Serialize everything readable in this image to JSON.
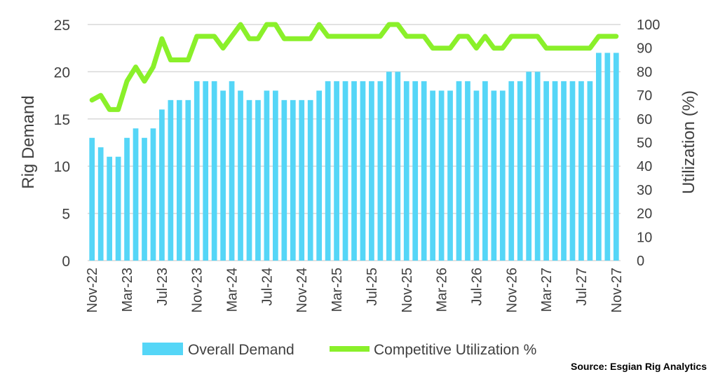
{
  "chart_data": {
    "type": "bar+line",
    "xlabel": "",
    "ylabel": "Rig Demand",
    "y2label": "Utilization (%)",
    "ylim": [
      0,
      25
    ],
    "y2lim": [
      0,
      100
    ],
    "yticks": [
      0,
      5,
      10,
      15,
      20,
      25
    ],
    "y2ticks": [
      0,
      10,
      20,
      30,
      40,
      50,
      60,
      70,
      80,
      90,
      100
    ],
    "grid": true,
    "legend_position": "bottom",
    "x_start": "Nov-22",
    "x_end": "Nov-27",
    "tick_labels": [
      "Nov-22",
      "Mar-23",
      "Jul-23",
      "Nov-23",
      "Mar-24",
      "Jul-24",
      "Nov-24",
      "Mar-25",
      "Jul-25",
      "Nov-25",
      "Mar-26",
      "Jul-26",
      "Nov-26",
      "Mar-27",
      "Jul-27",
      "Nov-27"
    ],
    "series": [
      {
        "name": "Overall Demand",
        "type": "bar",
        "axis": "left",
        "color": "#55d6f7",
        "values": [
          13,
          12,
          11,
          11,
          13,
          14,
          13,
          14,
          16,
          17,
          17,
          17,
          19,
          19,
          19,
          18,
          19,
          18,
          17,
          17,
          18,
          18,
          17,
          17,
          17,
          17,
          18,
          19,
          19,
          19,
          19,
          19,
          19,
          19,
          20,
          20,
          19,
          19,
          19,
          18,
          18,
          18,
          19,
          19,
          18,
          19,
          18,
          18,
          19,
          19,
          20,
          20,
          19,
          19,
          19,
          19,
          19,
          19,
          22,
          22,
          22
        ]
      },
      {
        "name": "Competitive Utilization %",
        "type": "line",
        "axis": "right",
        "color": "#8af02a",
        "values": [
          68,
          70,
          64,
          64,
          76,
          82,
          76,
          82,
          94,
          85,
          85,
          85,
          95,
          95,
          95,
          90,
          95,
          100,
          94,
          94,
          100,
          100,
          94,
          94,
          94,
          94,
          100,
          95,
          95,
          95,
          95,
          95,
          95,
          95,
          100,
          100,
          95,
          95,
          95,
          90,
          90,
          90,
          95,
          95,
          90,
          95,
          90,
          90,
          95,
          95,
          95,
          95,
          90,
          90,
          90,
          90,
          90,
          90,
          95,
          95,
          95
        ]
      }
    ],
    "source": "Source: Esgian Rig Analytics"
  }
}
